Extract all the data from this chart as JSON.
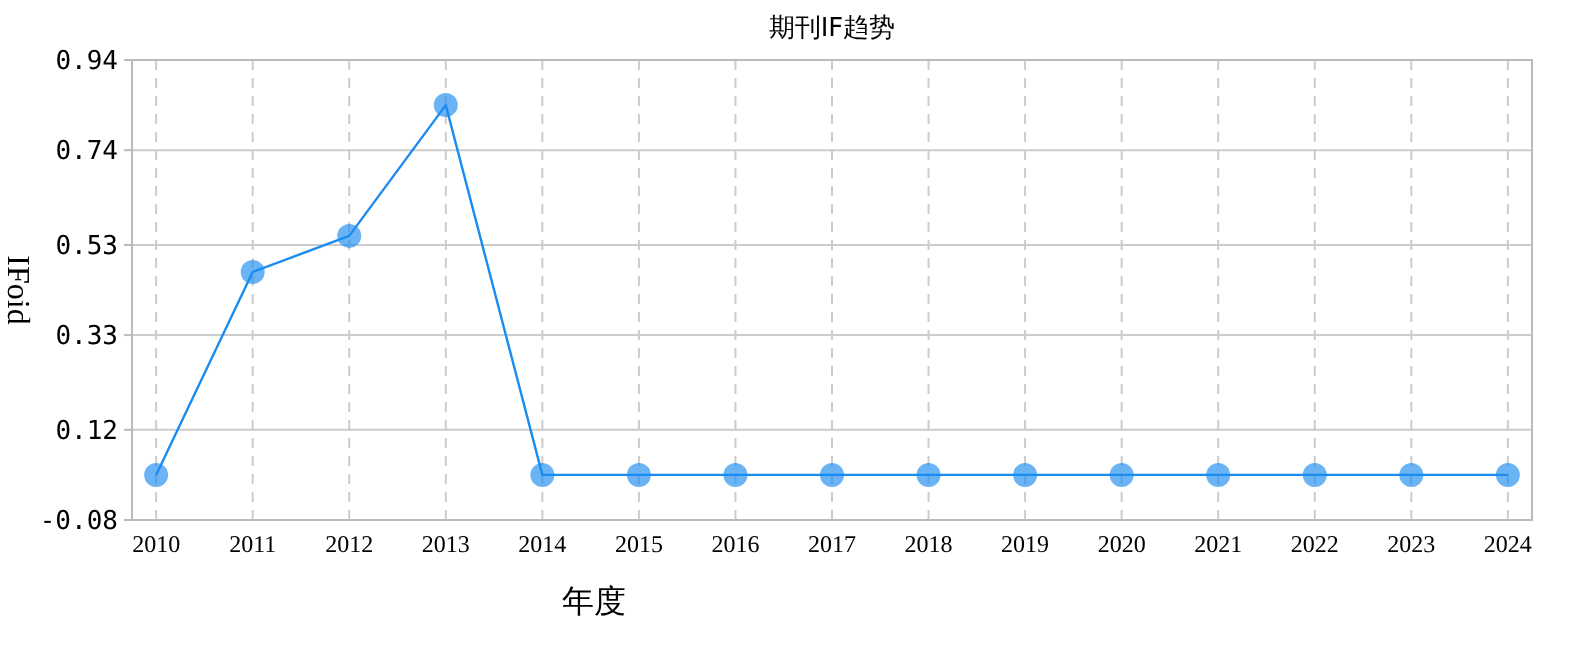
{
  "chart_data": {
    "type": "line",
    "title": "期刊IF趋势",
    "xlabel": "年度",
    "ylabel": "IFoid",
    "categories": [
      "2010",
      "2011",
      "2012",
      "2013",
      "2014",
      "2015",
      "2016",
      "2017",
      "2018",
      "2019",
      "2020",
      "2021",
      "2022",
      "2023",
      "2024"
    ],
    "series": [
      {
        "color": "#1a8cf0",
        "values": [
          0.02,
          0.47,
          0.55,
          0.84,
          0.02,
          0.02,
          0.02,
          0.02,
          0.02,
          0.02,
          0.02,
          0.02,
          0.02,
          0.02,
          0.02
        ]
      }
    ],
    "ylim": [
      -0.08,
      0.94
    ],
    "yticks": [
      -0.08,
      0.12,
      0.33,
      0.53,
      0.74,
      0.94
    ],
    "grid": true,
    "marker": "circle",
    "line_style": "solid"
  }
}
